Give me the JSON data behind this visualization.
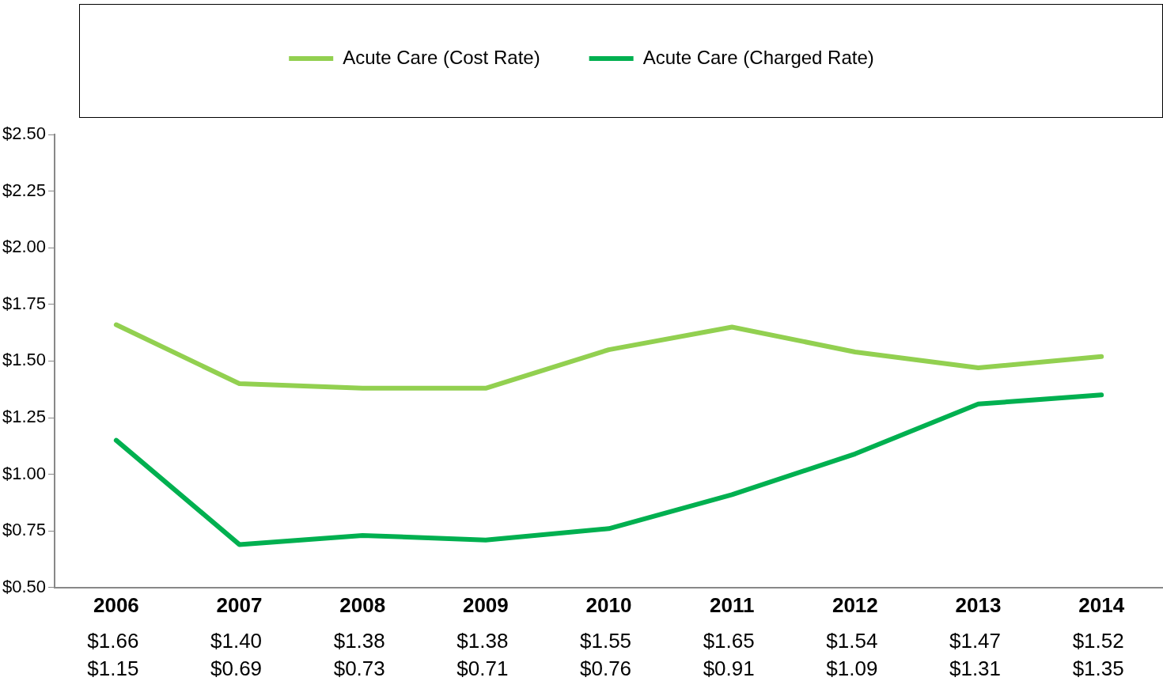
{
  "chart_data": {
    "type": "line",
    "categories": [
      "2006",
      "2007",
      "2008",
      "2009",
      "2010",
      "2011",
      "2012",
      "2013",
      "2014"
    ],
    "series": [
      {
        "name": "Acute Care (Cost Rate)",
        "color": "#92d050",
        "values": [
          1.66,
          1.4,
          1.38,
          1.38,
          1.55,
          1.65,
          1.54,
          1.47,
          1.52
        ],
        "value_labels": [
          "$1.66",
          "$1.40",
          "$1.38",
          "$1.38",
          "$1.55",
          "$1.65",
          "$1.54",
          "$1.47",
          "$1.52"
        ]
      },
      {
        "name": "Acute Care (Charged Rate)",
        "color": "#00b050",
        "values": [
          1.15,
          0.69,
          0.73,
          0.71,
          0.76,
          0.91,
          1.09,
          1.31,
          1.35
        ],
        "value_labels": [
          "$1.15",
          "$0.69",
          "$0.73",
          "$0.71",
          "$0.76",
          "$0.91",
          "$1.09",
          "$1.31",
          "$1.35"
        ]
      }
    ],
    "ylim": [
      0.5,
      2.5
    ],
    "yticks": [
      {
        "value": 0.5,
        "label": "$0.50"
      },
      {
        "value": 0.75,
        "label": "$0.75"
      },
      {
        "value": 1.0,
        "label": "$1.00"
      },
      {
        "value": 1.25,
        "label": "$1.25"
      },
      {
        "value": 1.5,
        "label": "$1.50"
      },
      {
        "value": 1.75,
        "label": "$1.75"
      },
      {
        "value": 2.0,
        "label": "$2.00"
      },
      {
        "value": 2.25,
        "label": "$2.25"
      },
      {
        "value": 2.5,
        "label": "$2.50"
      }
    ],
    "grid": false,
    "legend": "top",
    "marker": "none",
    "line_style": "solid"
  }
}
